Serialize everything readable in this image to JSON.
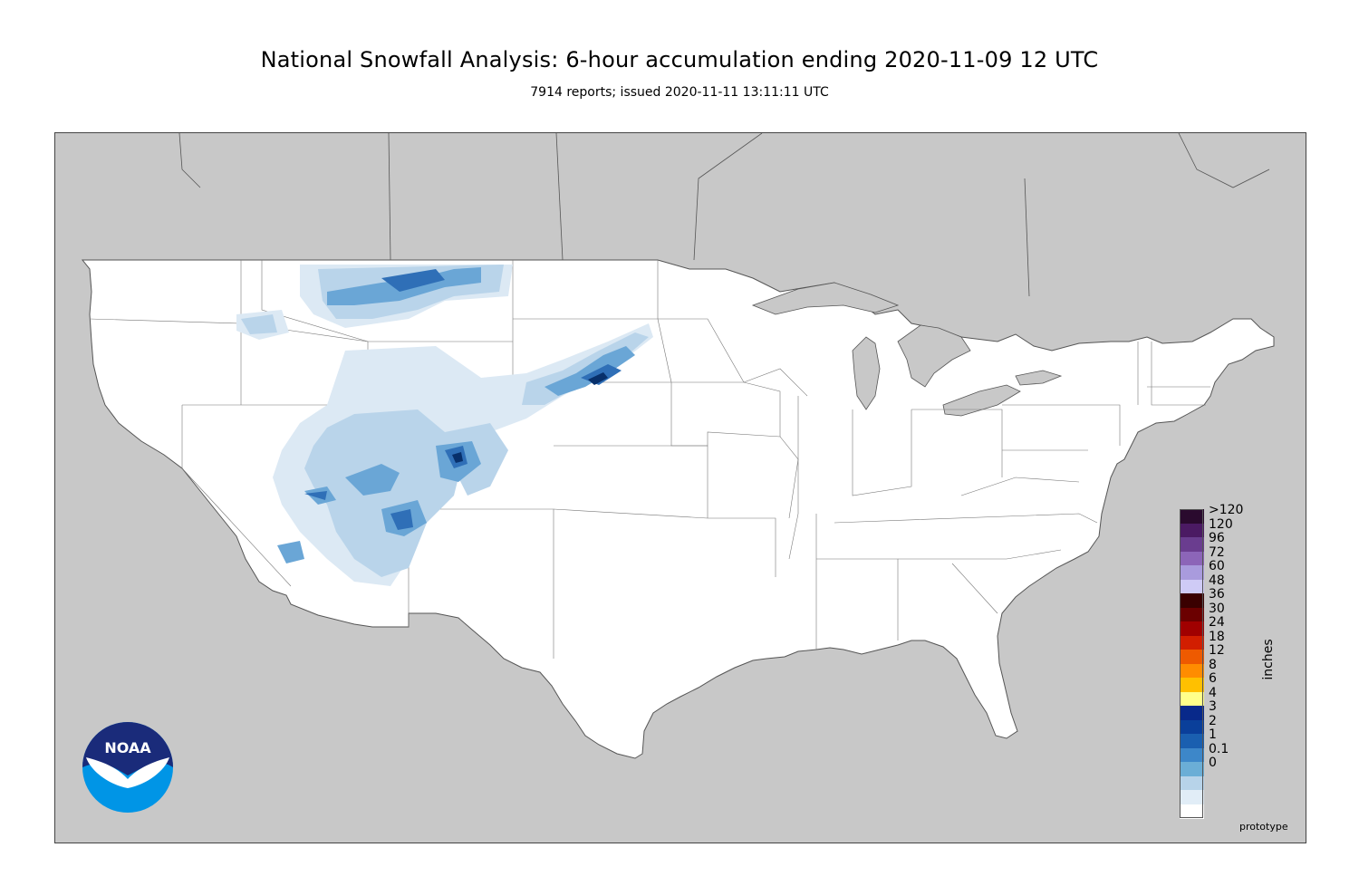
{
  "header": {
    "title": "National Snowfall Analysis: 6-hour accumulation ending 2020-11-09 12 UTC",
    "subtitle": "7914 reports; issued 2020-11-11 13:11:11 UTC"
  },
  "legend": {
    "units": "inches",
    "entries": [
      {
        "label": ">120",
        "color": "#2a0a2e"
      },
      {
        "label": "120",
        "color": "#4b1a63"
      },
      {
        "label": "96",
        "color": "#6a3d8f"
      },
      {
        "label": "72",
        "color": "#8c65b8"
      },
      {
        "label": "60",
        "color": "#a99bdd"
      },
      {
        "label": "48",
        "color": "#cfcbf6"
      },
      {
        "label": "36",
        "color": "#3a0000"
      },
      {
        "label": "30",
        "color": "#6b0000"
      },
      {
        "label": "24",
        "color": "#a00000"
      },
      {
        "label": "18",
        "color": "#d21e00"
      },
      {
        "label": "12",
        "color": "#ee5a00"
      },
      {
        "label": "8",
        "color": "#ff8c00"
      },
      {
        "label": "6",
        "color": "#ffc000"
      },
      {
        "label": "4",
        "color": "#ffff8a"
      },
      {
        "label": "3",
        "color": "#08298a"
      },
      {
        "label": "2",
        "color": "#0a3f9a"
      },
      {
        "label": "1",
        "color": "#1a5fb0"
      },
      {
        "label": "0.1",
        "color": "#3d87c9"
      },
      {
        "label": "0",
        "color": "#6baed6"
      },
      {
        "label": "",
        "color": "#b7d3e9"
      },
      {
        "label": "",
        "color": "#e1edf7"
      },
      {
        "label": "",
        "color": "#ffffff"
      }
    ]
  },
  "footer": {
    "note": "prototype",
    "logo_text": "NOAA"
  },
  "colors": {
    "background_land": "#c8c8c8",
    "conus": "#ffffff",
    "snow_light": "#d9e7f3",
    "snow_mid": "#b5d0e8",
    "snow_mod": "#6aa6d6",
    "snow_heavy": "#2f6fb7",
    "snow_max": "#08306b"
  }
}
